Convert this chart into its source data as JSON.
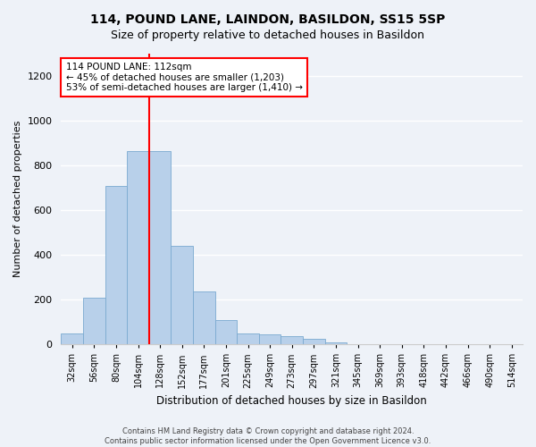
{
  "title": "114, POUND LANE, LAINDON, BASILDON, SS15 5SP",
  "subtitle": "Size of property relative to detached houses in Basildon",
  "xlabel": "Distribution of detached houses by size in Basildon",
  "ylabel": "Number of detached properties",
  "categories": [
    "32sqm",
    "56sqm",
    "80sqm",
    "104sqm",
    "128sqm",
    "152sqm",
    "177sqm",
    "201sqm",
    "225sqm",
    "249sqm",
    "273sqm",
    "297sqm",
    "321sqm",
    "345sqm",
    "369sqm",
    "393sqm",
    "418sqm",
    "442sqm",
    "466sqm",
    "490sqm",
    "514sqm"
  ],
  "values": [
    50,
    210,
    710,
    865,
    865,
    440,
    235,
    107,
    50,
    45,
    35,
    25,
    10,
    0,
    0,
    0,
    0,
    0,
    0,
    0,
    0
  ],
  "bar_color": "#b8d0ea",
  "bar_edge_color": "#7aaad0",
  "vline_x": 3.5,
  "vline_color": "red",
  "annotation_text": "114 POUND LANE: 112sqm\n← 45% of detached houses are smaller (1,203)\n53% of semi-detached houses are larger (1,410) →",
  "annotation_box_color": "white",
  "annotation_box_edge": "red",
  "ylim": [
    0,
    1300
  ],
  "yticks": [
    0,
    200,
    400,
    600,
    800,
    1000,
    1200
  ],
  "footer_line1": "Contains HM Land Registry data © Crown copyright and database right 2024.",
  "footer_line2": "Contains public sector information licensed under the Open Government Licence v3.0.",
  "bg_color": "#eef2f8",
  "plot_bg_color": "#eef2f8",
  "fig_width": 6.0,
  "fig_height": 5.0,
  "title_fontsize": 10,
  "subtitle_fontsize": 9
}
